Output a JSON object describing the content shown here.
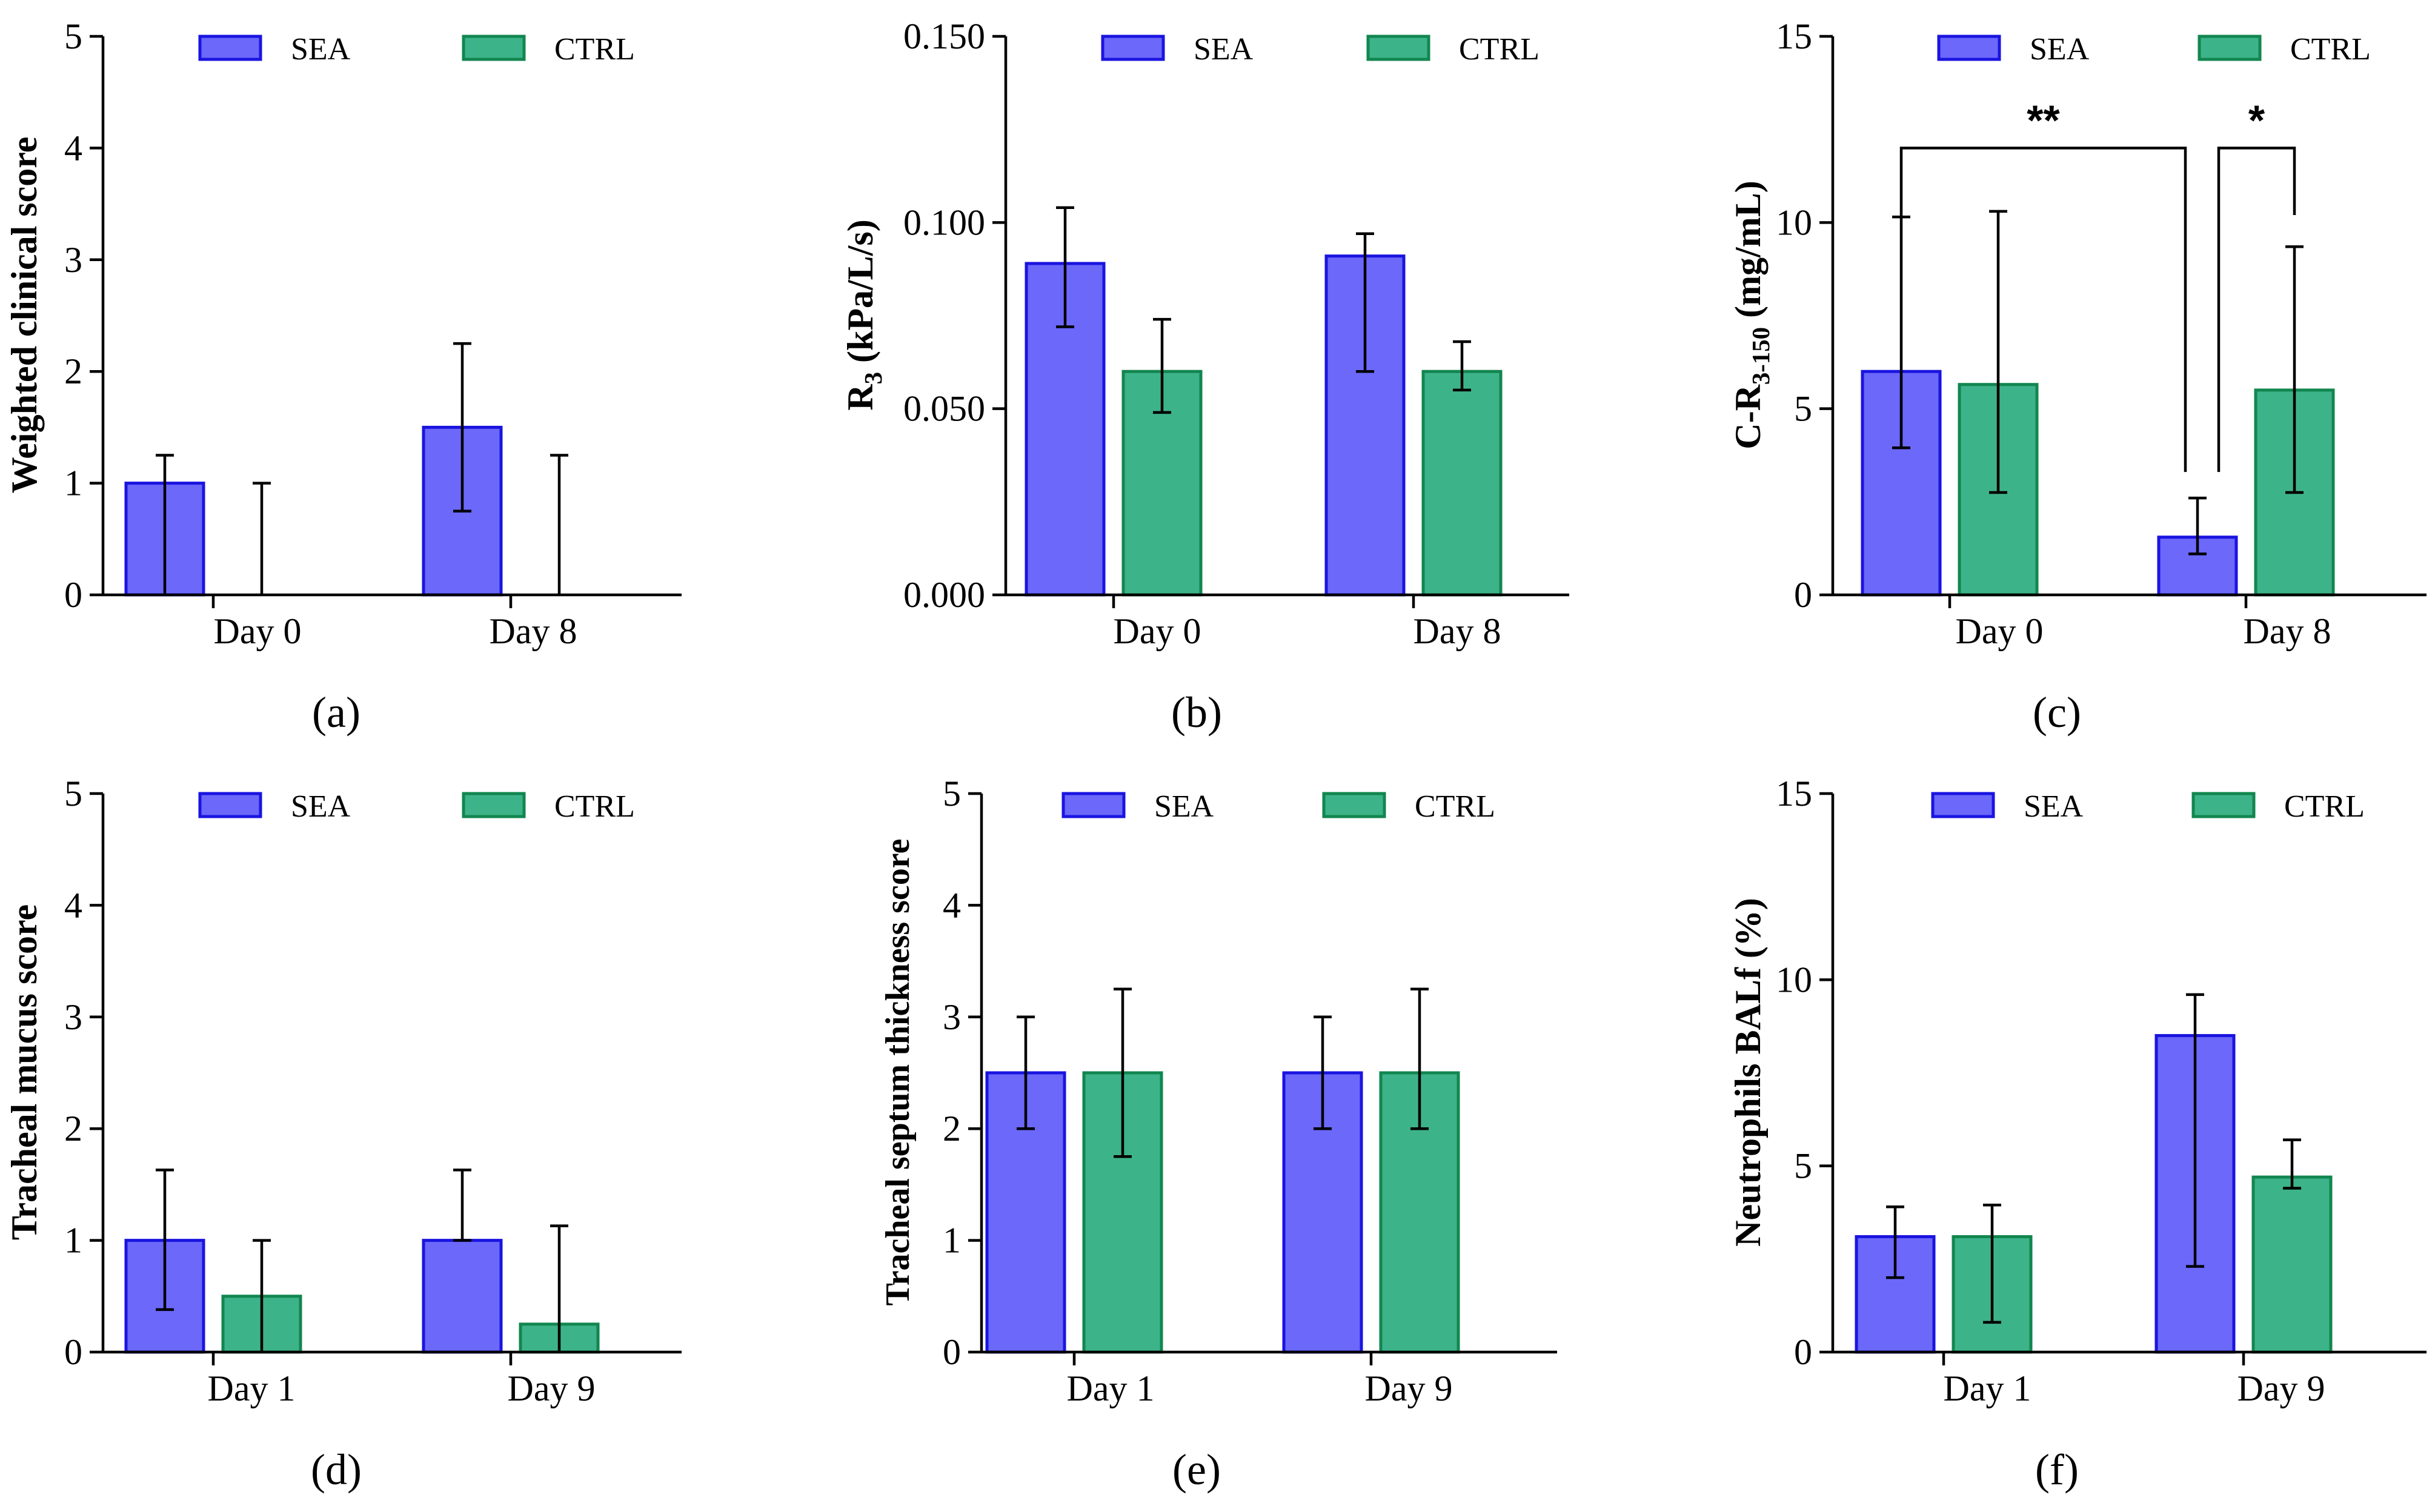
{
  "colors": {
    "sea_fill": "#6b68fa",
    "sea_stroke": "#1a14e0",
    "ctrl_fill": "#3db38a",
    "ctrl_stroke": "#12864f"
  },
  "legend": {
    "sea": "SEA",
    "ctrl": "CTRL"
  },
  "chart_data": [
    {
      "panel": "a",
      "panel_label": "(a)",
      "type": "bar",
      "ylabel_parts": [
        "Weighted clinical score"
      ],
      "ylim": [
        0,
        5
      ],
      "yticks": [
        "0",
        "1",
        "2",
        "3",
        "4",
        "5"
      ],
      "categories": [
        "Day 0",
        "Day 8"
      ],
      "series": [
        {
          "name": "SEA",
          "values": [
            1.0,
            1.5
          ],
          "err_low": [
            0.0,
            0.75
          ],
          "err_high": [
            1.25,
            2.25
          ]
        },
        {
          "name": "CTRL",
          "values": [
            0.0,
            0.0
          ],
          "err_low": [
            0.0,
            0.0
          ],
          "err_high": [
            1.0,
            1.25
          ]
        }
      ]
    },
    {
      "panel": "b",
      "panel_label": "(b)",
      "type": "bar",
      "ylabel_parts": [
        "R",
        "3",
        " (kPa/L/s)"
      ],
      "ylim": [
        0,
        0.15
      ],
      "yticks": [
        "0.000",
        "0.050",
        "0.100",
        "0.150"
      ],
      "categories": [
        "Day 0",
        "Day 8"
      ],
      "series": [
        {
          "name": "SEA",
          "values": [
            0.089,
            0.091
          ],
          "err_low": [
            0.072,
            0.06
          ],
          "err_high": [
            0.104,
            0.097
          ]
        },
        {
          "name": "CTRL",
          "values": [
            0.06,
            0.06
          ],
          "err_low": [
            0.049,
            0.055
          ],
          "err_high": [
            0.074,
            0.068
          ]
        }
      ]
    },
    {
      "panel": "c",
      "panel_label": "(c)",
      "type": "bar",
      "ylabel_parts": [
        "C-R",
        "3-150",
        " (mg/mL)"
      ],
      "ylim": [
        0,
        15
      ],
      "yticks": [
        "0",
        "5",
        "10",
        "15"
      ],
      "categories": [
        "Day 0",
        "Day 8"
      ],
      "series": [
        {
          "name": "SEA",
          "values": [
            6.0,
            1.55
          ],
          "err_low": [
            3.95,
            1.1
          ],
          "err_high": [
            10.15,
            2.6
          ]
        },
        {
          "name": "CTRL",
          "values": [
            5.65,
            5.5
          ],
          "err_low": [
            2.75,
            2.75
          ],
          "err_high": [
            10.3,
            9.35
          ]
        }
      ],
      "significance": [
        {
          "label": "**",
          "from": [
            0,
            0
          ],
          "to": [
            1,
            0
          ],
          "bracket_y": 12.0,
          "left_end": 10.15,
          "right_end": 3.3
        },
        {
          "label": "*",
          "from": [
            1,
            0
          ],
          "to": [
            1,
            1
          ],
          "bracket_y": 12.0,
          "left_end": 3.3,
          "right_end": 10.2
        }
      ]
    },
    {
      "panel": "d",
      "panel_label": "(d)",
      "type": "bar",
      "ylabel_parts": [
        "Tracheal mucus score"
      ],
      "ylim": [
        0,
        5
      ],
      "yticks": [
        "0",
        "1",
        "2",
        "3",
        "4",
        "5"
      ],
      "categories": [
        "Day 1",
        "Day 9"
      ],
      "series": [
        {
          "name": "SEA",
          "values": [
            1.0,
            1.0
          ],
          "err_low": [
            0.38,
            1.0
          ],
          "err_high": [
            1.63,
            1.63
          ]
        },
        {
          "name": "CTRL",
          "values": [
            0.5,
            0.25
          ],
          "err_low": [
            0.0,
            0.0
          ],
          "err_high": [
            1.0,
            1.13
          ]
        }
      ]
    },
    {
      "panel": "e",
      "panel_label": "(e)",
      "type": "bar",
      "ylabel_parts": [
        "Tracheal septum thickness score"
      ],
      "ylim": [
        0,
        5
      ],
      "yticks": [
        "0",
        "1",
        "2",
        "3",
        "4",
        "5"
      ],
      "categories": [
        "Day 1",
        "Day 9"
      ],
      "series": [
        {
          "name": "SEA",
          "values": [
            2.5,
            2.5
          ],
          "err_low": [
            2.0,
            2.0
          ],
          "err_high": [
            3.0,
            3.0
          ]
        },
        {
          "name": "CTRL",
          "values": [
            2.5,
            2.5
          ],
          "err_low": [
            1.75,
            2.0
          ],
          "err_high": [
            3.25,
            3.25
          ]
        }
      ]
    },
    {
      "panel": "f",
      "panel_label": "(f)",
      "type": "bar",
      "ylabel_parts": [
        "Neutrophils BALf (%)"
      ],
      "ylim": [
        0,
        15
      ],
      "yticks": [
        "0",
        "5",
        "10",
        "15"
      ],
      "categories": [
        "Day 1",
        "Day 9"
      ],
      "series": [
        {
          "name": "SEA",
          "values": [
            3.1,
            8.5
          ],
          "err_low": [
            2.0,
            2.3
          ],
          "err_high": [
            3.9,
            9.6
          ]
        },
        {
          "name": "CTRL",
          "values": [
            3.1,
            4.7
          ],
          "err_low": [
            0.8,
            4.4
          ],
          "err_high": [
            3.95,
            5.7
          ]
        }
      ]
    }
  ]
}
